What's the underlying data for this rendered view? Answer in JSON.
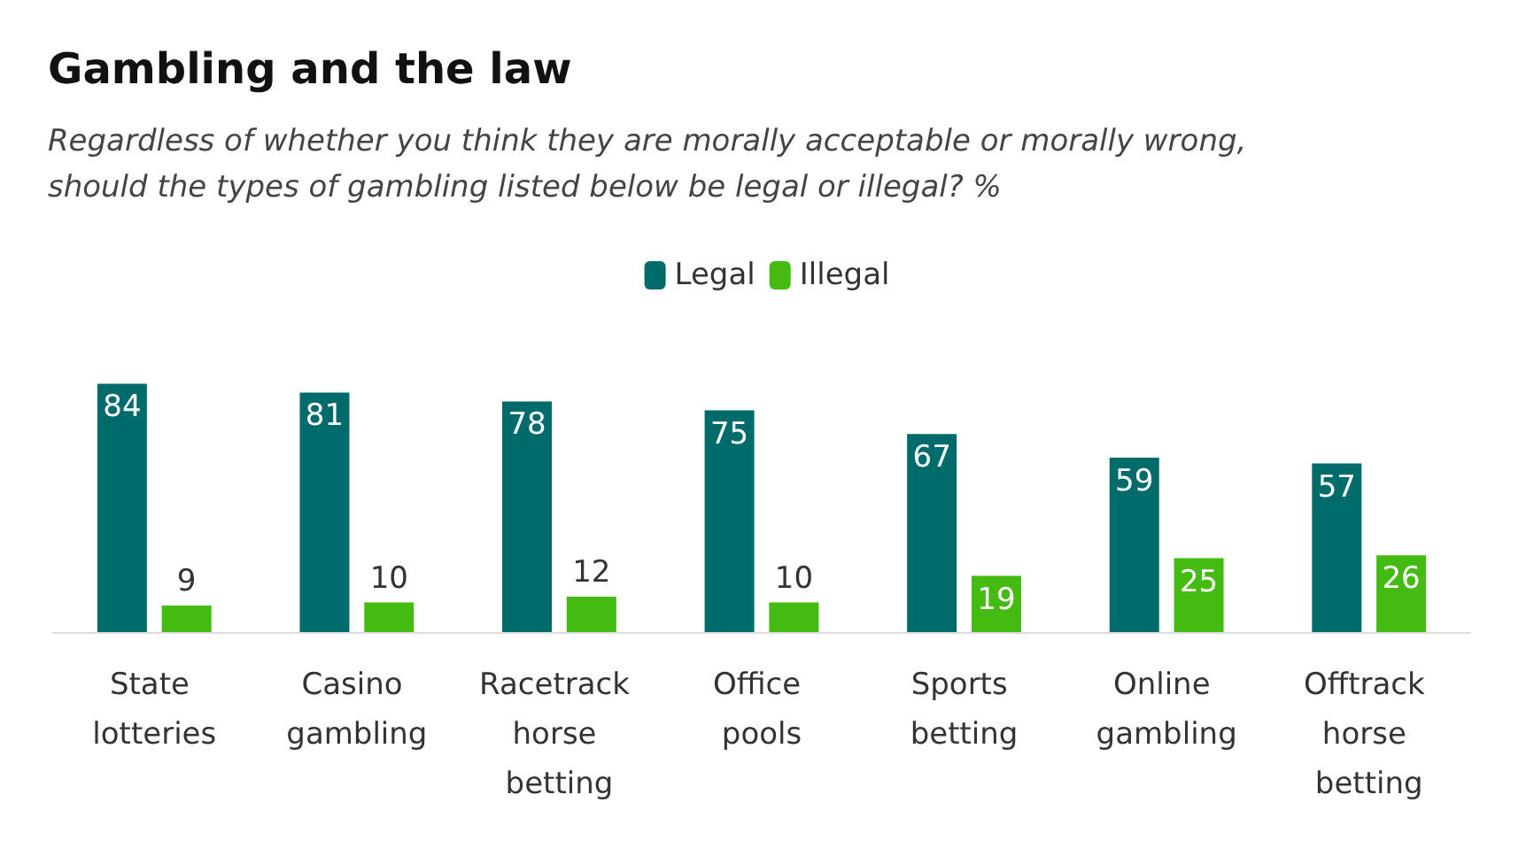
{
  "chart_data": {
    "type": "bar",
    "title": "Gambling and the law",
    "subtitle": "Regardless of whether you think they are morally acceptable or morally wrong, should the types of gambling listed below be legal or illegal? %",
    "categories": [
      "State lotteries",
      "Casino gambling",
      "Racetrack horse betting",
      "Office pools",
      "Sports betting",
      "Online gambling",
      "Offtrack horse betting"
    ],
    "series": [
      {
        "name": "Legal",
        "color": "#006b6b",
        "values": [
          84,
          81,
          78,
          75,
          67,
          59,
          57
        ]
      },
      {
        "name": "Illegal",
        "color": "#44bb11",
        "values": [
          9,
          10,
          12,
          10,
          19,
          25,
          26
        ]
      }
    ],
    "data_labels": true,
    "legend": "top",
    "grid": false
  }
}
